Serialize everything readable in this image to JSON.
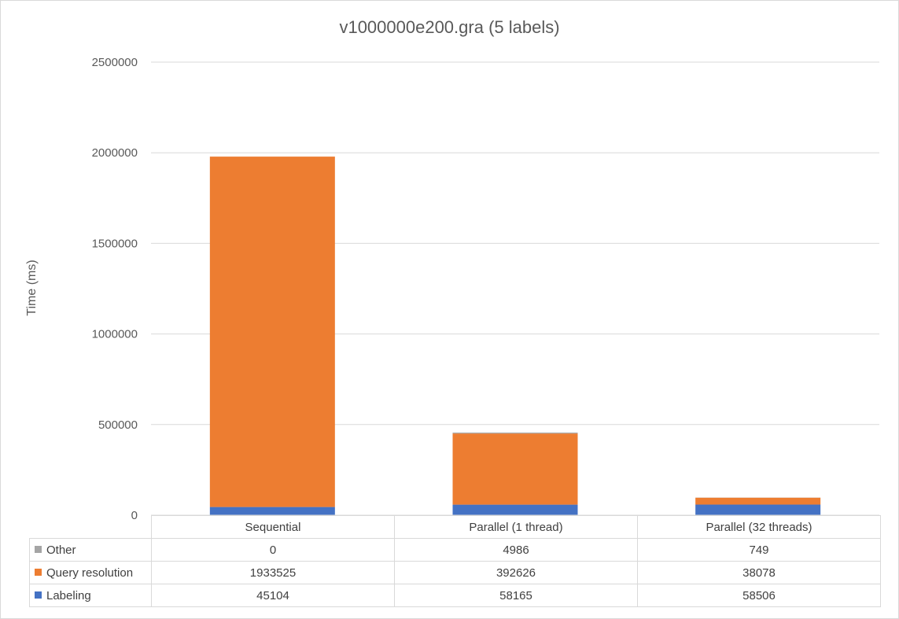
{
  "chart_data": {
    "type": "bar",
    "stacked": true,
    "title": "v1000000e200.gra (5 labels)",
    "ylabel": "Time (ms)",
    "xlabel": "",
    "ylim": [
      0,
      2500000
    ],
    "yticks": [
      "0",
      "500000",
      "1000000",
      "1500000",
      "2000000",
      "2500000"
    ],
    "categories": [
      "Sequential",
      "Parallel (1 thread)",
      "Parallel (32 threads)"
    ],
    "grid": true,
    "legend": "data-table-below",
    "series": [
      {
        "name": "Labeling",
        "color": "#4472c4",
        "values": [
          45104,
          58165,
          58506
        ],
        "labels": [
          "45104",
          "58165",
          "58506"
        ]
      },
      {
        "name": "Query resolution",
        "color": "#ed7d31",
        "values": [
          1933525,
          392626,
          38078
        ],
        "labels": [
          "1933525",
          "392626",
          "38078"
        ]
      },
      {
        "name": "Other",
        "color": "#a5a5a5",
        "values": [
          0,
          4986,
          749
        ],
        "labels": [
          "0",
          "4986",
          "749"
        ]
      }
    ]
  }
}
